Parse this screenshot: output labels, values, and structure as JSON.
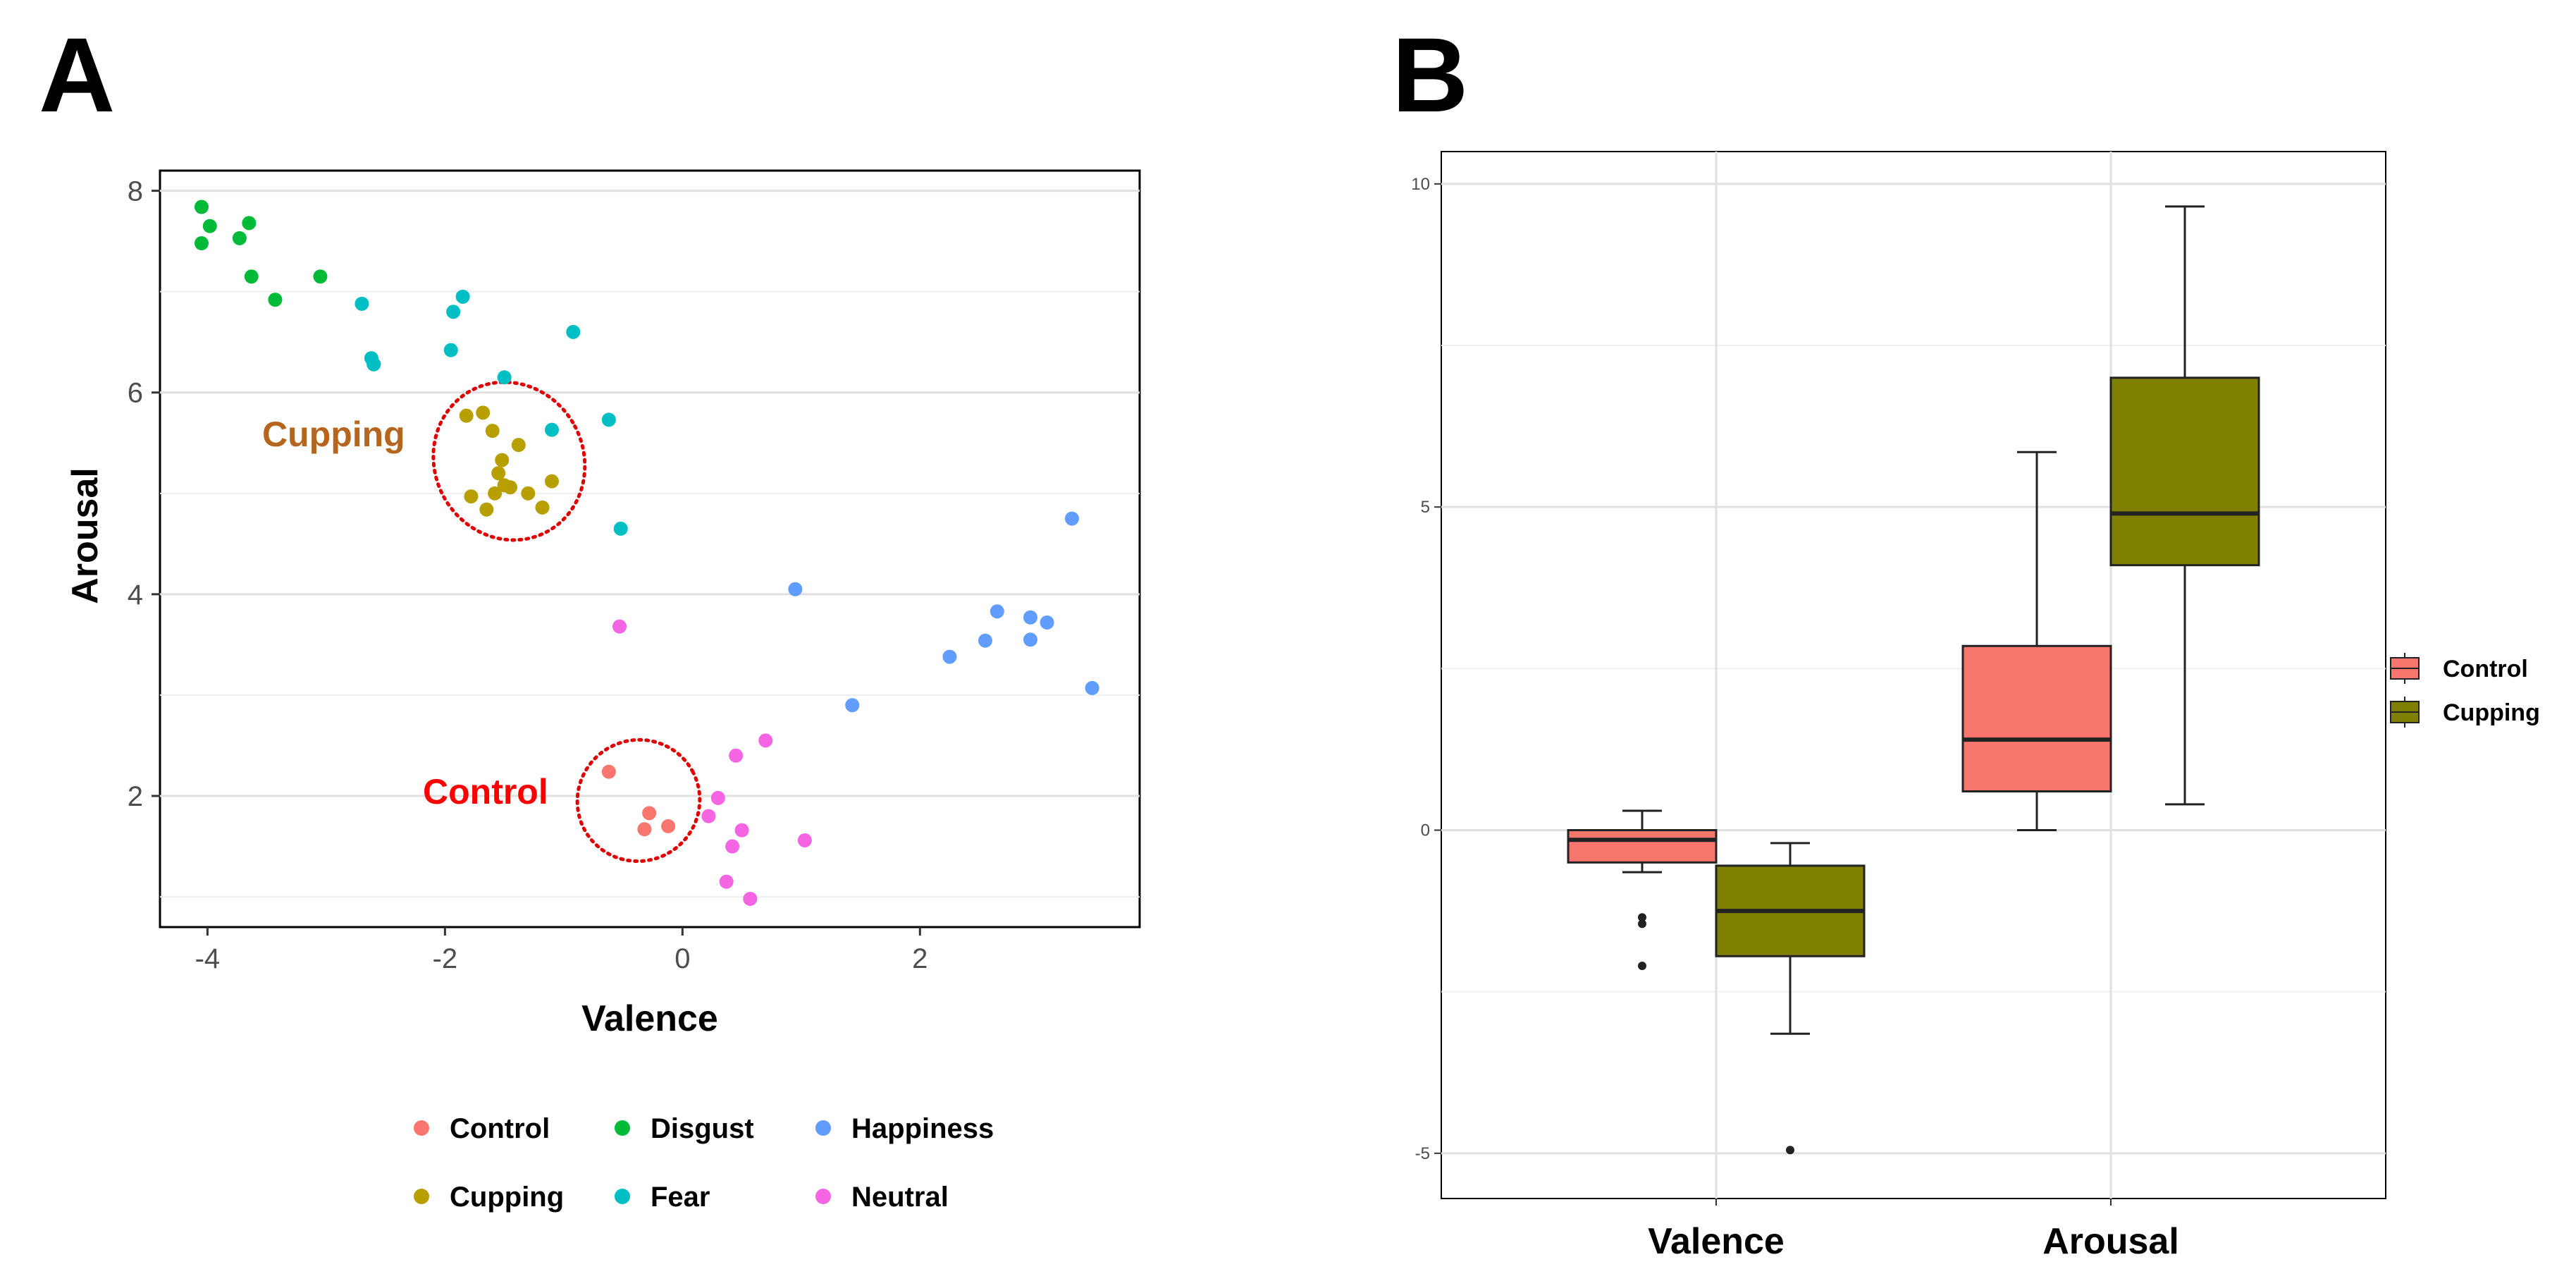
{
  "panels": {
    "a_label": "A",
    "b_label": "B"
  },
  "chart_data": [
    {
      "type": "scatter",
      "xlabel": "Valence",
      "ylabel": "Arousal",
      "xlim": [
        -4.4,
        3.85
      ],
      "ylim": [
        0.7,
        8.2
      ],
      "xticks": [
        -4,
        -2,
        0,
        2
      ],
      "yticks": [
        2,
        4,
        6,
        8
      ],
      "xtick_labels": [
        "-4",
        "-2",
        "0",
        "2"
      ],
      "ytick_labels": [
        "2",
        "4",
        "6",
        "8"
      ],
      "grid": true,
      "legend_position": "bottom",
      "annotations": [
        {
          "text": "Cupping",
          "color": "#b5651d",
          "group": "Cupping"
        },
        {
          "text": "Control",
          "color": "#ff0000",
          "group": "Control"
        }
      ],
      "series": [
        {
          "name": "Control",
          "color": "#f8766d",
          "points": [
            [
              -0.62,
              2.24
            ],
            [
              -0.28,
              1.83
            ],
            [
              -0.32,
              1.67
            ],
            [
              -0.12,
              1.7
            ]
          ]
        },
        {
          "name": "Cupping",
          "color": "#b79f00",
          "points": [
            [
              -1.82,
              5.77
            ],
            [
              -1.68,
              5.8
            ],
            [
              -1.6,
              5.62
            ],
            [
              -1.38,
              5.48
            ],
            [
              -1.52,
              5.33
            ],
            [
              -1.55,
              5.2
            ],
            [
              -1.5,
              5.08
            ],
            [
              -1.45,
              5.06
            ],
            [
              -1.58,
              5.0
            ],
            [
              -1.78,
              4.97
            ],
            [
              -1.3,
              5.0
            ],
            [
              -1.1,
              5.12
            ],
            [
              -1.18,
              4.86
            ],
            [
              -1.65,
              4.84
            ]
          ]
        },
        {
          "name": "Disgust",
          "color": "#00ba38",
          "points": [
            [
              -4.05,
              7.84
            ],
            [
              -3.98,
              7.65
            ],
            [
              -3.65,
              7.68
            ],
            [
              -3.73,
              7.53
            ],
            [
              -4.05,
              7.48
            ],
            [
              -3.63,
              7.15
            ],
            [
              -3.05,
              7.15
            ],
            [
              -3.43,
              6.92
            ],
            [
              -2.6,
              6.28
            ]
          ]
        },
        {
          "name": "Fear",
          "color": "#00bfc4",
          "points": [
            [
              -2.7,
              6.88
            ],
            [
              -1.85,
              6.95
            ],
            [
              -1.93,
              6.8
            ],
            [
              -0.92,
              6.6
            ],
            [
              -2.62,
              6.34
            ],
            [
              -2.6,
              6.28
            ],
            [
              -1.95,
              6.42
            ],
            [
              -1.5,
              6.15
            ],
            [
              -0.62,
              5.73
            ],
            [
              -1.1,
              5.63
            ],
            [
              -0.52,
              4.65
            ]
          ]
        },
        {
          "name": "Happiness",
          "color": "#619cff",
          "points": [
            [
              3.28,
              4.75
            ],
            [
              0.95,
              4.05
            ],
            [
              2.65,
              3.83
            ],
            [
              2.93,
              3.77
            ],
            [
              3.07,
              3.72
            ],
            [
              2.93,
              3.55
            ],
            [
              2.55,
              3.54
            ],
            [
              2.25,
              3.38
            ],
            [
              3.45,
              3.07
            ],
            [
              1.43,
              2.9
            ]
          ]
        },
        {
          "name": "Neutral",
          "color": "#f564e3",
          "points": [
            [
              -0.53,
              3.68
            ],
            [
              0.7,
              2.55
            ],
            [
              0.45,
              2.4
            ],
            [
              0.3,
              1.98
            ],
            [
              0.22,
              1.8
            ],
            [
              0.5,
              1.66
            ],
            [
              1.03,
              1.56
            ],
            [
              0.42,
              1.5
            ],
            [
              0.37,
              1.15
            ],
            [
              0.57,
              0.98
            ]
          ]
        }
      ]
    },
    {
      "type": "box",
      "categories": [
        "Valence",
        "Arousal"
      ],
      "ylim": [
        -5.7,
        10.5
      ],
      "yticks": [
        -5,
        0,
        5,
        10
      ],
      "ytick_labels": [
        "-5",
        "0",
        "5",
        "10"
      ],
      "grid": true,
      "legend_position": "right",
      "series": [
        {
          "name": "Control",
          "color": "#f8766d",
          "boxes": [
            {
              "category": "Valence",
              "min": -0.65,
              "q1": -0.5,
              "median": -0.15,
              "q3": 0.0,
              "max": 0.3,
              "outliers": [
                -1.35,
                -1.45,
                -2.1
              ]
            },
            {
              "category": "Arousal",
              "min": 0.0,
              "q1": 0.6,
              "median": 1.4,
              "q3": 2.85,
              "max": 5.85,
              "outliers": []
            }
          ]
        },
        {
          "name": "Cupping",
          "color": "#7f7f00",
          "boxes": [
            {
              "category": "Valence",
              "min": -3.15,
              "q1": -1.95,
              "median": -1.25,
              "q3": -0.55,
              "max": -0.2,
              "outliers": [
                -4.95
              ]
            },
            {
              "category": "Arousal",
              "min": 0.4,
              "q1": 4.1,
              "median": 4.9,
              "q3": 7.0,
              "max": 9.65,
              "outliers": []
            }
          ]
        }
      ]
    }
  ]
}
